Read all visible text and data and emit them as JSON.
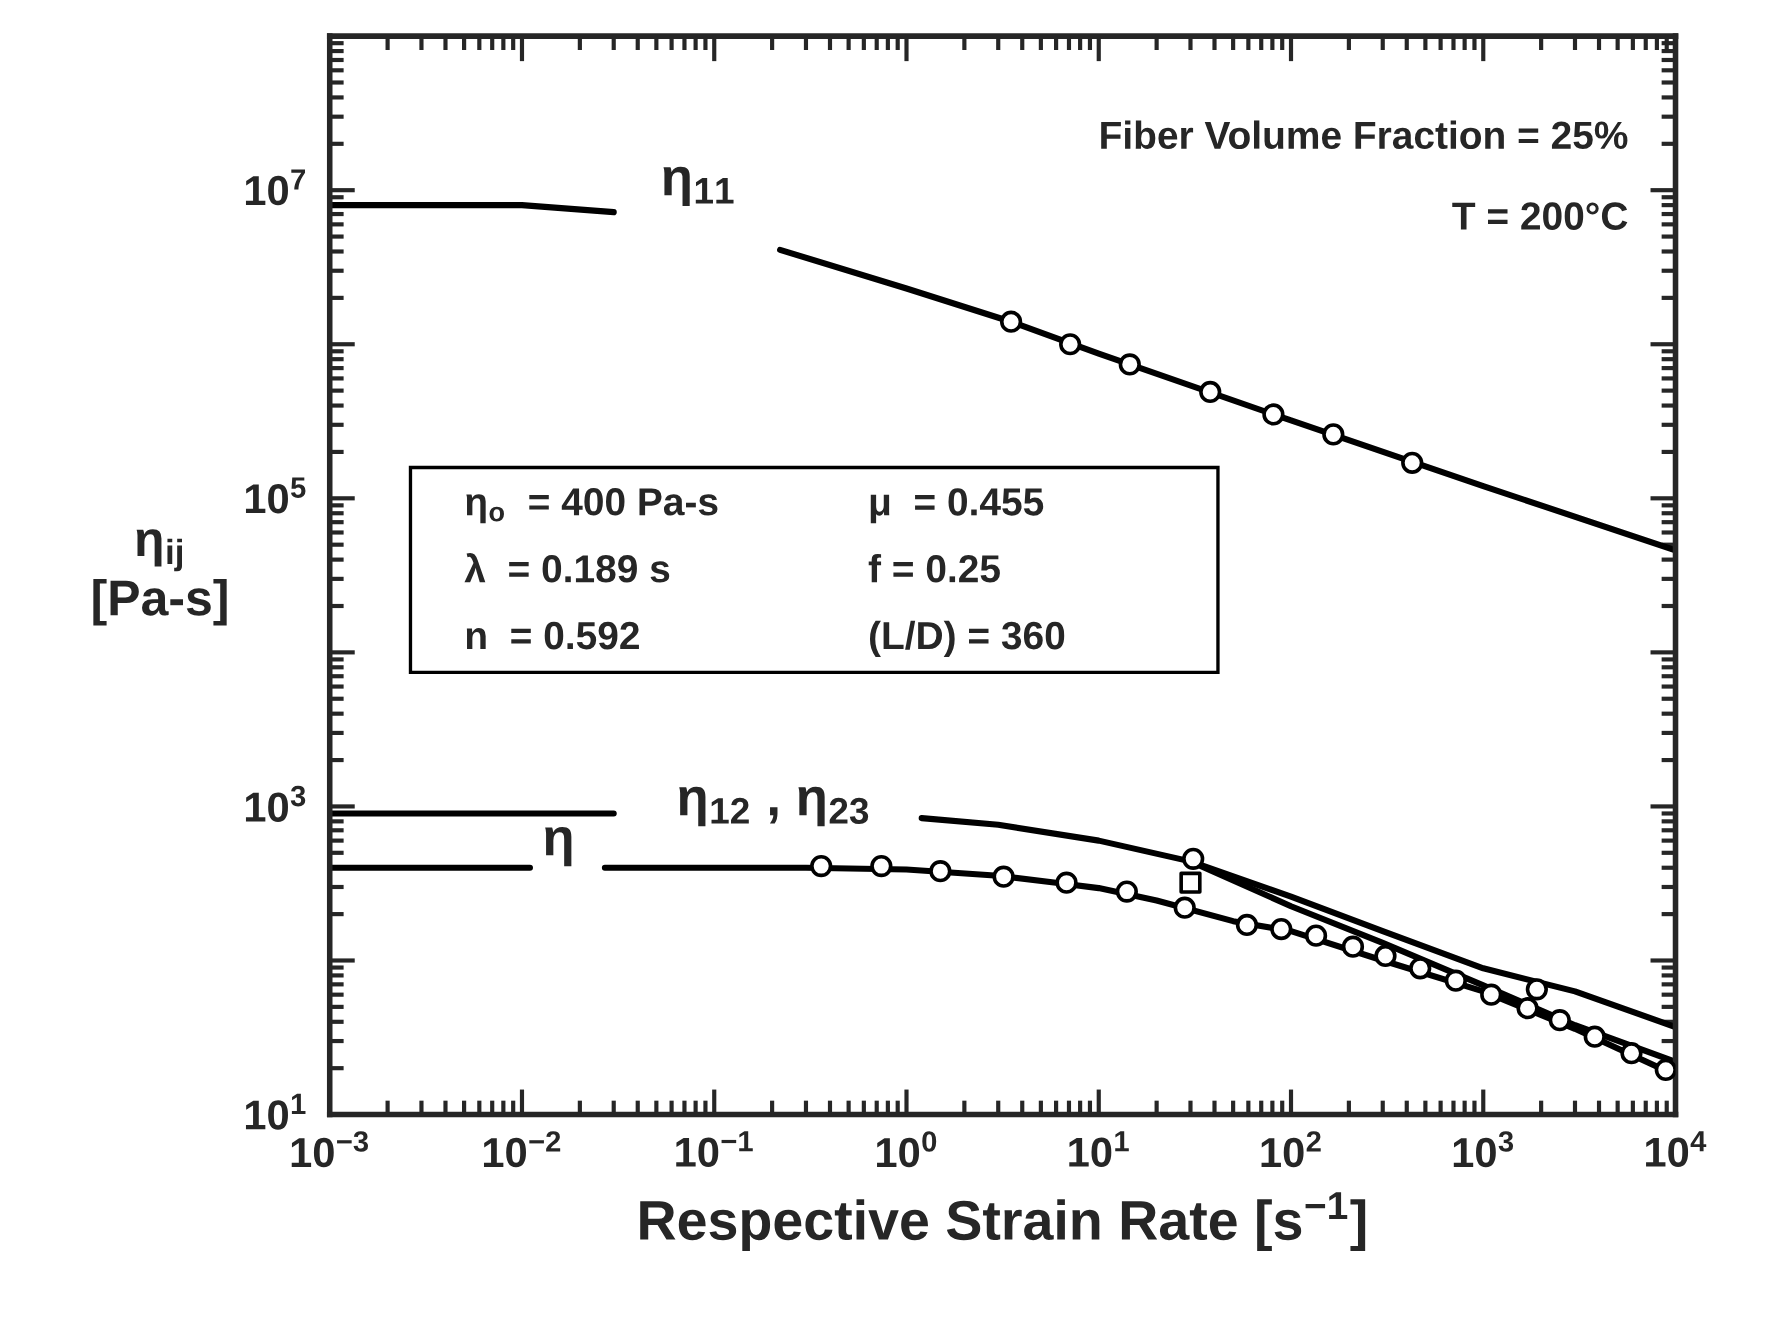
{
  "chart_data": {
    "type": "line",
    "log": "xy",
    "xlabel": "Respective Strain Rate [s$^{−1}$]",
    "ylabel": "η$_{ij}$\n[Pa-s]",
    "xlim": [
      0.001,
      10000
    ],
    "ylim": [
      10,
      100000000
    ],
    "xticks": [
      {
        "value": 0.001,
        "label": "10$^{−3}$"
      },
      {
        "value": 0.01,
        "label": "10$^{−2}$"
      },
      {
        "value": 0.1,
        "label": "10$^{−1}$"
      },
      {
        "value": 1,
        "label": "10$^{0}$"
      },
      {
        "value": 10,
        "label": "10$^{1}$"
      },
      {
        "value": 100,
        "label": "10$^{2}$"
      },
      {
        "value": 1000,
        "label": "10$^{3}$"
      },
      {
        "value": 10000,
        "label": "10$^{4}$"
      }
    ],
    "yticks": [
      {
        "value": 10,
        "label": "10$^{1}$"
      },
      {
        "value": 100,
        "label": null
      },
      {
        "value": 1000,
        "label": "10$^{3}$"
      },
      {
        "value": 10000,
        "label": null
      },
      {
        "value": 100000,
        "label": "10$^{5}$"
      },
      {
        "value": 1000000,
        "label": null
      },
      {
        "value": 10000000,
        "label": "10$^{7}$"
      },
      {
        "value": 100000000,
        "label": null
      }
    ],
    "series": [
      {
        "color": "#000000",
        "line_style": "solid",
        "x": [
          0.001,
          0.01,
          0.03,
          0.1,
          0.22,
          1,
          3.5,
          10,
          100,
          1000,
          10000
        ],
        "values": [
          8000000,
          8000000,
          7200000,
          null,
          4100000,
          2300000,
          1400000,
          870000,
          320000,
          120000,
          46000
        ]
      },
      {
        "color": "#000000",
        "line_style": "solid",
        "x": [
          0.001,
          0.03,
          0.1,
          1.2,
          3,
          10,
          30,
          100,
          300,
          1000,
          3000,
          10000
        ],
        "values": [
          900,
          900,
          null,
          840,
          760,
          600,
          440,
          260,
          155,
          89,
          63,
          37
        ]
      },
      {
        "color": "#000000",
        "line_style": "solid",
        "x": [
          30,
          100,
          300,
          1000,
          3000,
          10000
        ],
        "values": [
          440,
          225,
          130,
          69,
          38,
          22
        ]
      },
      {
        "color": "#000000",
        "line_style": "solid",
        "x": [
          0.001,
          0.011,
          0.013,
          0.027,
          0.1,
          0.3,
          1,
          3,
          6,
          10,
          20,
          50,
          100,
          300,
          1000,
          3000,
          10000
        ],
        "values": [
          400,
          400,
          null,
          400,
          400,
          400,
          390,
          355,
          320,
          295,
          245,
          180,
          155,
          100,
          63,
          36,
          18
        ]
      },
      {
        "type": "scatter",
        "color": "#000000",
        "marker": "circle",
        "x": [
          3.5,
          7.1,
          14.5,
          38,
          81,
          166,
          427
        ],
        "values": [
          1400000,
          1000000,
          740000,
          490000,
          350000,
          260000,
          170000
        ]
      },
      {
        "type": "scatter",
        "color": "#000000",
        "marker": "circle",
        "x": [
          0.36,
          0.74,
          1.5,
          3.2,
          6.8,
          14,
          28,
          59,
          89,
          135,
          210,
          310,
          470,
          720,
          1100,
          1700,
          2500,
          3800,
          5900,
          8900
        ],
        "values": [
          410,
          410,
          380,
          350,
          320,
          280,
          220,
          170,
          160,
          145,
          123,
          107,
          89,
          74,
          60,
          49,
          41,
          32,
          25,
          19.5
        ]
      },
      {
        "type": "scatter",
        "color": "#000000",
        "marker": "circle",
        "x": [
          31,
          1900
        ],
        "values": [
          457,
          65
        ]
      },
      {
        "type": "scatter",
        "color": "#000000",
        "marker": "square",
        "x": [
          30
        ],
        "values": [
          320
        ]
      }
    ],
    "annotations": [
      "Fiber Volume Fraction = 25%",
      "T = 200°C",
      "η$_{o}$  = 400 Pa-s",
      "μ  = 0.455",
      "λ  = 0.189 s",
      "f = 0.25",
      "n  = 0.592",
      "(L/D) = 360",
      "η$_{11}$",
      "η$_{12}$ , η$_{23}$",
      "η"
    ]
  }
}
